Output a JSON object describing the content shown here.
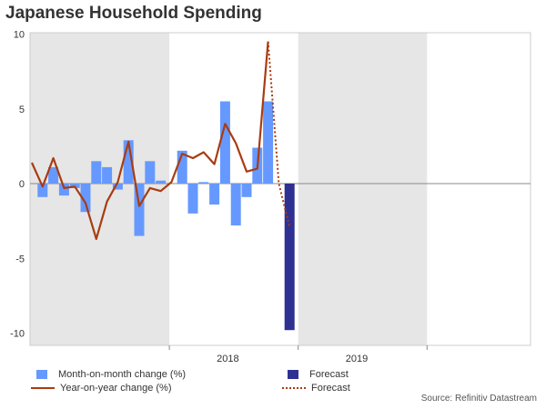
{
  "title": "Japanese Household Spending",
  "source": "Source: Refinitiv Datastream",
  "colors": {
    "mom_bar": "#6699ff",
    "forecast_bar": "#2e3192",
    "yoy_line": "#a83c12",
    "shade": "#e6e6e6",
    "zero_line": "#888888"
  },
  "chart_data": {
    "type": "bar",
    "ylim": [
      -10.5,
      10
    ],
    "yticks": [
      10,
      5,
      0,
      -5,
      -10
    ],
    "ytick_labels": [
      "10",
      "5",
      "0",
      "-5",
      "-10"
    ],
    "xtick_labels": [
      {
        "label": "2018",
        "month": 18
      },
      {
        "label": "2019",
        "month": 30
      }
    ],
    "year_boundaries": [
      13,
      25,
      37
    ],
    "shaded_months": [
      [
        0,
        13
      ],
      [
        25,
        37
      ]
    ],
    "series": [
      {
        "name": "Month-on-month change (%)",
        "type": "bar",
        "months": [
          1,
          2,
          3,
          4,
          5,
          6,
          7,
          8,
          9,
          10,
          11,
          12,
          13,
          14,
          15,
          16,
          17,
          18,
          19,
          20,
          21,
          22,
          23
        ],
        "values": [
          -0.9,
          1.1,
          -0.8,
          -0.3,
          -1.9,
          1.5,
          1.1,
          -0.4,
          2.9,
          -3.5,
          1.5,
          0.2,
          0.0,
          2.2,
          -2.0,
          0.1,
          -1.4,
          5.5,
          -2.8,
          -0.9,
          2.4,
          5.5,
          0
        ]
      },
      {
        "name": "Forecast",
        "type": "bar",
        "months": [
          24
        ],
        "values": [
          -9.8
        ]
      },
      {
        "name": "Year-on-year change (%)",
        "type": "line",
        "months": [
          0,
          1,
          2,
          3,
          4,
          5,
          6,
          7,
          8,
          9,
          10,
          11,
          12,
          13,
          14,
          15,
          16,
          17,
          18,
          19,
          20,
          21,
          22
        ],
        "values": [
          1.4,
          -0.2,
          1.7,
          -0.3,
          -0.2,
          -1.3,
          -3.7,
          -1.2,
          0.1,
          2.8,
          -1.5,
          -0.3,
          -0.5,
          0.1,
          2.0,
          1.7,
          2.1,
          1.3,
          4.0,
          2.7,
          0.8,
          1.0,
          9.5
        ]
      },
      {
        "name": "Forecast",
        "type": "dotted-line",
        "months": [
          22,
          23,
          24
        ],
        "values": [
          9.5,
          0.0,
          -2.9
        ]
      }
    ]
  },
  "legend": [
    {
      "label": "Month-on-month change (%)",
      "kind": "bar",
      "color": "#6699ff"
    },
    {
      "label": "Forecast",
      "kind": "bar",
      "color": "#2e3192"
    },
    {
      "label": "Year-on-year change (%)",
      "kind": "line",
      "color": "#a83c12"
    },
    {
      "label": "Forecast",
      "kind": "dotted-line",
      "color": "#a83c12"
    }
  ]
}
